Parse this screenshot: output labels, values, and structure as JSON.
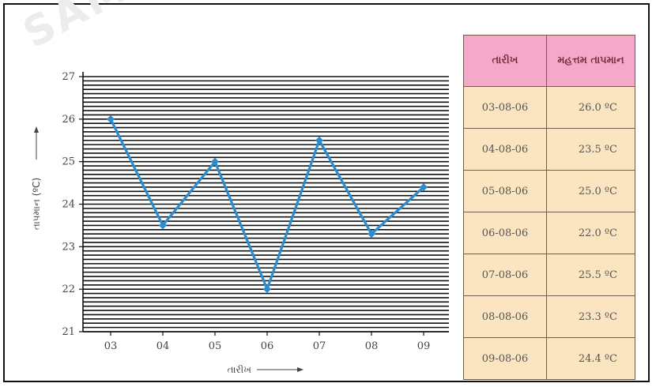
{
  "watermark": "SAMAGRA",
  "chart_data": {
    "type": "line",
    "xlabel": "તારીખ",
    "ylabel": "તાપમાન (ºC)",
    "categories": [
      "03",
      "04",
      "05",
      "06",
      "07",
      "08",
      "09"
    ],
    "values": [
      26.0,
      23.5,
      25.0,
      22.0,
      25.5,
      23.3,
      24.4
    ],
    "ylim": [
      21,
      27
    ],
    "yticks": [
      21,
      22,
      23,
      24,
      25,
      26,
      27
    ],
    "color": "#2b8ccf",
    "grid": true
  },
  "table": {
    "headers": [
      "તારીખ",
      "મહત્તમ તાપમાન"
    ],
    "rows": [
      {
        "date": "03-08-06",
        "temp": "26.0 ºC"
      },
      {
        "date": "04-08-06",
        "temp": "23.5 ºC"
      },
      {
        "date": "05-08-06",
        "temp": "25.0 ºC"
      },
      {
        "date": "06-08-06",
        "temp": "22.0 ºC"
      },
      {
        "date": "07-08-06",
        "temp": "25.5 ºC"
      },
      {
        "date": "08-08-06",
        "temp": "23.3 ºC"
      },
      {
        "date": "09-08-06",
        "temp": "24.4 ºC"
      }
    ]
  }
}
